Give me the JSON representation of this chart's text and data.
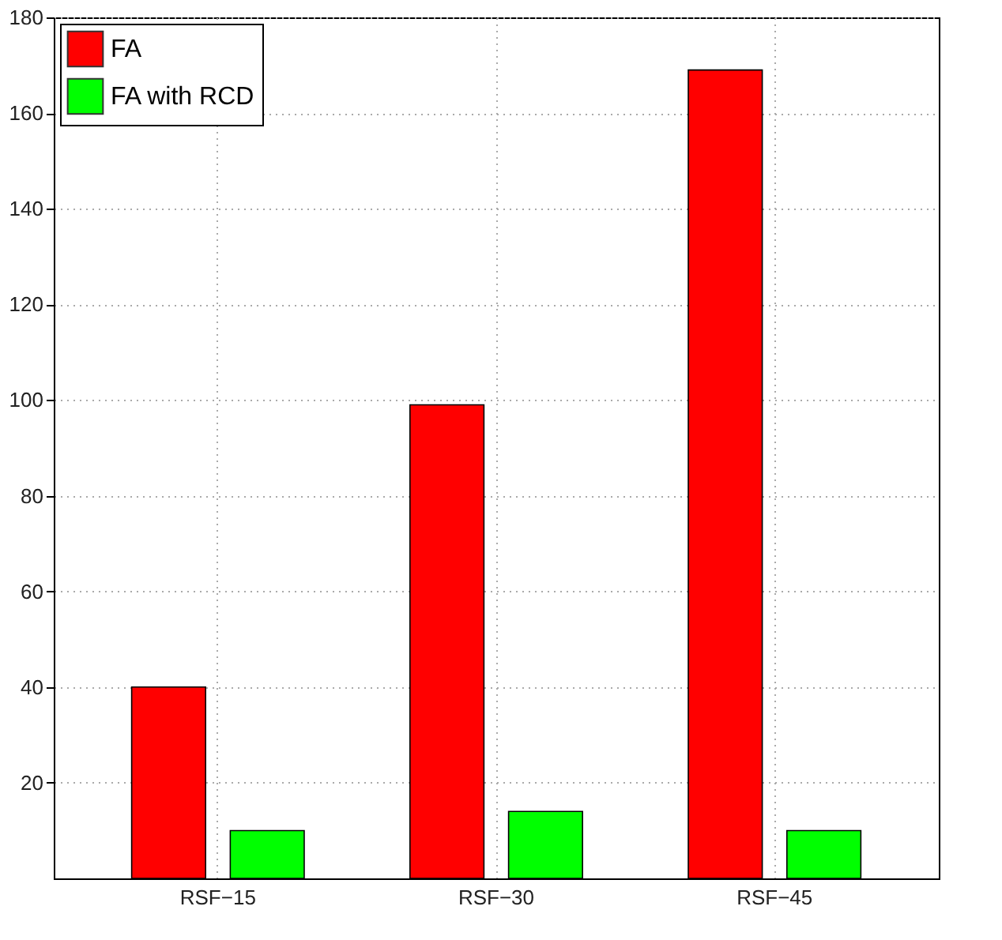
{
  "chart_data": {
    "type": "bar",
    "categories": [
      "RSF−15",
      "RSF−30",
      "RSF−45"
    ],
    "series": [
      {
        "name": "FA",
        "color": "#ff0000",
        "values": [
          40,
          99,
          169
        ]
      },
      {
        "name": "FA with RCD",
        "color": "#00ff00",
        "values": [
          10,
          14,
          10
        ]
      }
    ],
    "ylim": [
      0,
      180
    ],
    "yticks": [
      20,
      40,
      60,
      80,
      100,
      120,
      140,
      160,
      180
    ],
    "grid": true,
    "legend": "top left"
  }
}
